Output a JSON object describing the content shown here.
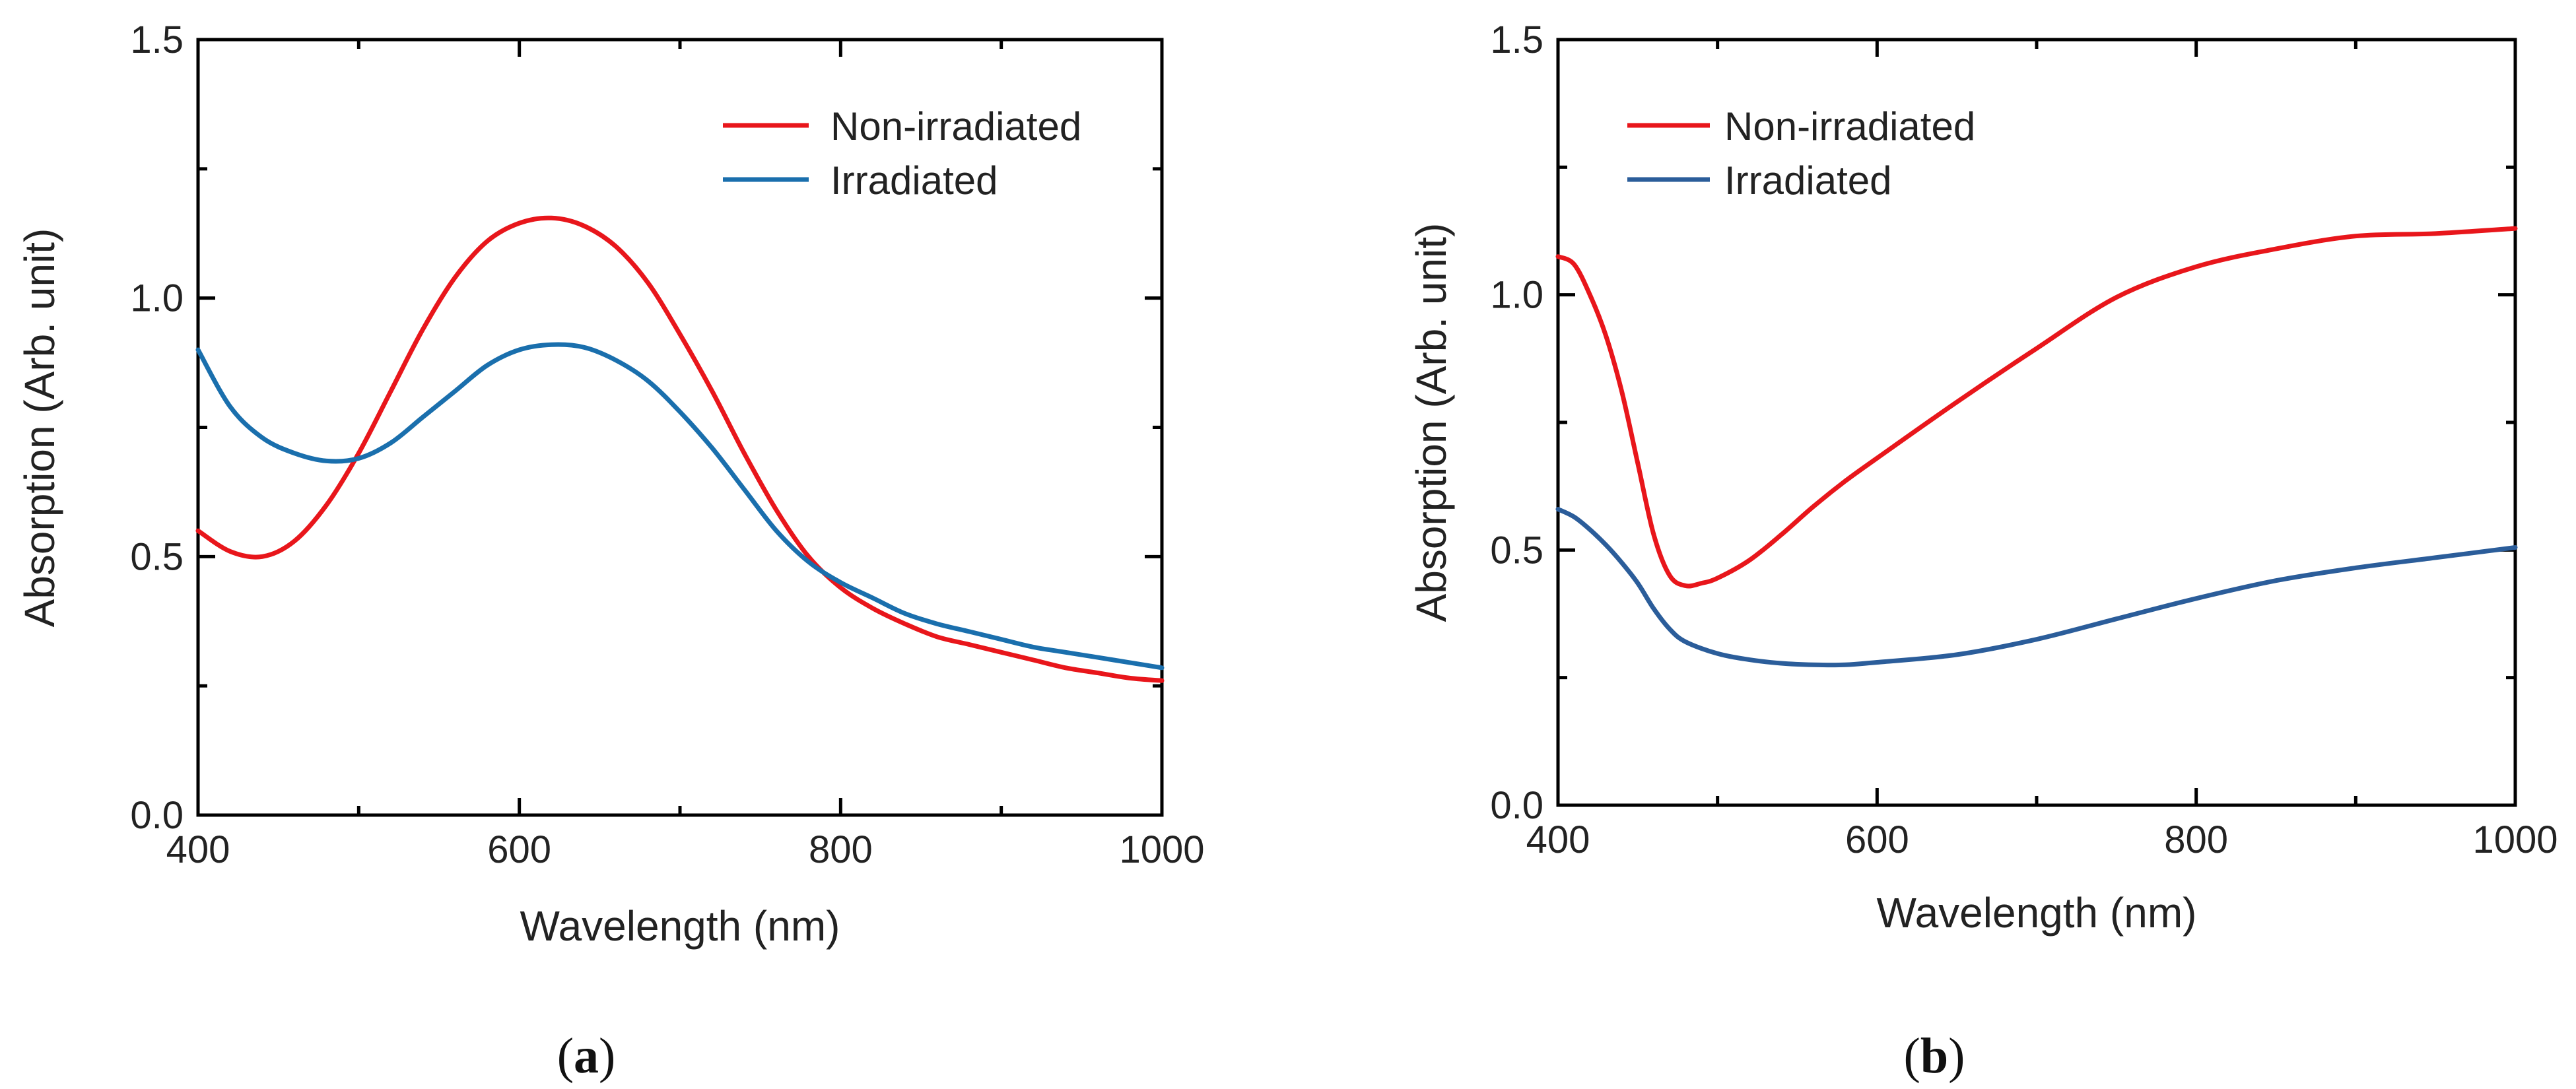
{
  "chart_data": [
    {
      "type": "line",
      "panel_label": "a",
      "xlabel": "Wavelength (nm)",
      "ylabel": "Absorption (Arb. unit)",
      "xlim": [
        400,
        1000
      ],
      "ylim": [
        0.0,
        1.5
      ],
      "xticks": [
        400,
        600,
        800,
        1000
      ],
      "yticks": [
        0.0,
        0.5,
        1.0,
        1.5
      ],
      "xtick_labels": [
        "400",
        "600",
        "800",
        "1000"
      ],
      "ytick_labels": [
        "0.0",
        "0.5",
        "1.0",
        "1.5"
      ],
      "legend_position": "top-right",
      "series": [
        {
          "name": "Non-irradiated",
          "color": "#e8161b",
          "x": [
            400,
            420,
            440,
            460,
            480,
            500,
            520,
            540,
            560,
            580,
            600,
            620,
            640,
            660,
            680,
            700,
            720,
            740,
            760,
            780,
            800,
            820,
            840,
            860,
            880,
            900,
            920,
            940,
            960,
            980,
            1000
          ],
          "y": [
            0.55,
            0.51,
            0.5,
            0.53,
            0.6,
            0.7,
            0.82,
            0.94,
            1.04,
            1.11,
            1.145,
            1.155,
            1.14,
            1.1,
            1.03,
            0.93,
            0.82,
            0.7,
            0.59,
            0.5,
            0.44,
            0.4,
            0.37,
            0.345,
            0.33,
            0.315,
            0.3,
            0.285,
            0.275,
            0.265,
            0.26
          ]
        },
        {
          "name": "Irradiated",
          "color": "#1a6fad",
          "x": [
            400,
            420,
            440,
            460,
            480,
            500,
            520,
            540,
            560,
            580,
            600,
            620,
            640,
            660,
            680,
            700,
            720,
            740,
            760,
            780,
            800,
            820,
            840,
            860,
            880,
            900,
            920,
            940,
            960,
            980,
            1000
          ],
          "y": [
            0.9,
            0.79,
            0.73,
            0.7,
            0.685,
            0.69,
            0.72,
            0.77,
            0.82,
            0.87,
            0.9,
            0.91,
            0.905,
            0.88,
            0.84,
            0.78,
            0.71,
            0.63,
            0.55,
            0.49,
            0.45,
            0.42,
            0.39,
            0.37,
            0.355,
            0.34,
            0.325,
            0.315,
            0.305,
            0.295,
            0.285
          ]
        }
      ]
    },
    {
      "type": "line",
      "panel_label": "b",
      "xlabel": "Wavelength (nm)",
      "ylabel": "Absorption (Arb. unit)",
      "xlim": [
        400,
        1000
      ],
      "ylim": [
        0.0,
        1.5
      ],
      "xticks": [
        400,
        600,
        800,
        1000
      ],
      "yticks": [
        0.0,
        0.5,
        1.0,
        1.5
      ],
      "xtick_labels": [
        "400",
        "600",
        "800",
        "1000"
      ],
      "ytick_labels": [
        "0.0",
        "0.5",
        "1.0",
        "1.5"
      ],
      "legend_position": "top-left",
      "series": [
        {
          "name": "Non-irradiated",
          "color": "#e8161b",
          "x": [
            400,
            410,
            420,
            430,
            440,
            450,
            460,
            470,
            480,
            490,
            500,
            520,
            540,
            560,
            580,
            600,
            650,
            700,
            750,
            800,
            850,
            900,
            950,
            1000
          ],
          "y": [
            1.075,
            1.06,
            1.0,
            0.92,
            0.81,
            0.67,
            0.53,
            0.45,
            0.43,
            0.435,
            0.445,
            0.48,
            0.53,
            0.585,
            0.635,
            0.68,
            0.79,
            0.895,
            0.995,
            1.055,
            1.09,
            1.115,
            1.12,
            1.13
          ]
        },
        {
          "name": "Irradiated",
          "color": "#2b5d9a",
          "x": [
            400,
            410,
            420,
            430,
            440,
            450,
            460,
            470,
            480,
            500,
            520,
            540,
            560,
            580,
            600,
            650,
            700,
            750,
            800,
            850,
            900,
            950,
            1000
          ],
          "y": [
            0.58,
            0.565,
            0.54,
            0.51,
            0.475,
            0.435,
            0.385,
            0.345,
            0.32,
            0.297,
            0.285,
            0.278,
            0.275,
            0.275,
            0.28,
            0.295,
            0.325,
            0.365,
            0.405,
            0.44,
            0.465,
            0.485,
            0.505
          ]
        }
      ]
    }
  ]
}
